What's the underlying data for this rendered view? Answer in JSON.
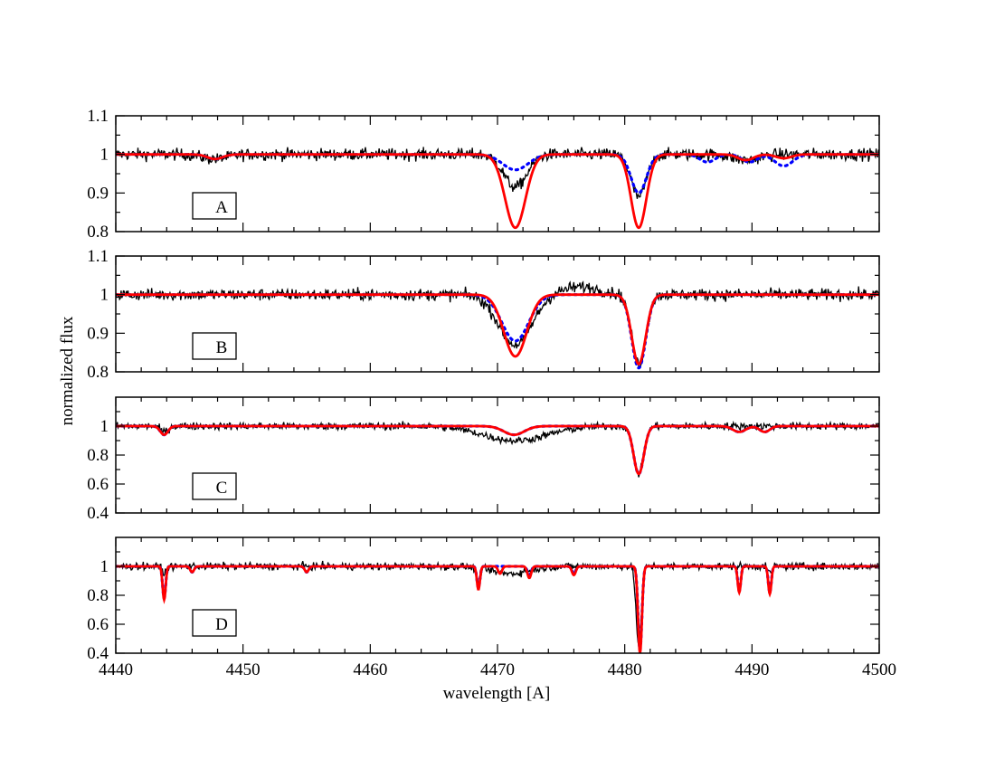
{
  "chart_data": {
    "type": "line",
    "xlabel": "wavelength [A]",
    "ylabel": "normalized flux",
    "xlim": [
      4440,
      4500
    ],
    "xticks": [
      "4440",
      "4450",
      "4460",
      "4470",
      "4480",
      "4490",
      "4500"
    ],
    "colors": {
      "observed": "#000000",
      "model_solid": "#ff0000",
      "model_dotted": "#0000ff"
    },
    "line_styles": {
      "observed": "solid thin",
      "model_solid": "solid thick",
      "model_dotted": "dotted"
    },
    "panels": [
      {
        "label": "A",
        "ylim": [
          0.8,
          1.1
        ],
        "yticks": [
          "0.8",
          "0.9",
          "1",
          "1.1"
        ],
        "noise": 0.015,
        "series": [
          {
            "key": "observed",
            "lines": [
              [
                4471.4,
                0.085,
                0.9
              ],
              [
                4481.1,
                0.11,
                0.6
              ],
              [
                4447.8,
                0.012,
                1.0
              ],
              [
                4489.5,
                0.015,
                1.0
              ]
            ]
          },
          {
            "key": "model_dotted",
            "lines": [
              [
                4471.4,
                0.04,
                1.0
              ],
              [
                4481.1,
                0.1,
                0.6
              ],
              [
                4447.8,
                0.012,
                0.6
              ],
              [
                4486.5,
                0.02,
                0.6
              ],
              [
                4489.8,
                0.02,
                0.6
              ],
              [
                4492.5,
                0.03,
                0.7
              ]
            ]
          },
          {
            "key": "model_solid",
            "lines": [
              [
                4471.4,
                0.19,
                0.8
              ],
              [
                4481.1,
                0.19,
                0.6
              ],
              [
                4447.8,
                0.012,
                0.6
              ],
              [
                4489.5,
                0.015,
                0.6
              ],
              [
                4492.5,
                0.01,
                0.6
              ]
            ]
          }
        ]
      },
      {
        "label": "B",
        "ylim": [
          0.8,
          1.1
        ],
        "yticks": [
          "0.8",
          "0.9",
          "1",
          "1.1"
        ],
        "noise": 0.015,
        "series": [
          {
            "key": "observed",
            "lines": [
              [
                4471.4,
                0.13,
                1.3
              ],
              [
                4481.1,
                0.18,
                0.55
              ],
              [
                4476.5,
                -0.02,
                1.5
              ]
            ]
          },
          {
            "key": "model_dotted",
            "lines": [
              [
                4471.4,
                0.12,
                1.05
              ],
              [
                4481.1,
                0.19,
                0.55
              ]
            ]
          },
          {
            "key": "model_solid",
            "lines": [
              [
                4471.4,
                0.16,
                0.9
              ],
              [
                4481.1,
                0.18,
                0.55
              ]
            ]
          }
        ]
      },
      {
        "label": "C",
        "ylim": [
          0.4,
          1.2
        ],
        "yticks": [
          "0.4",
          "0.6",
          "0.8",
          "1"
        ],
        "noise": 0.025,
        "series": [
          {
            "key": "observed",
            "lines": [
              [
                4471.4,
                0.1,
                2.5
              ],
              [
                4481.1,
                0.33,
                0.4
              ],
              [
                4443.8,
                0.04,
                0.3
              ]
            ]
          },
          {
            "key": "model_dotted",
            "lines": [
              [
                4481.1,
                0.33,
                0.4
              ],
              [
                4471.3,
                0.06,
                0.8
              ],
              [
                4443.8,
                0.06,
                0.3
              ],
              [
                4489.0,
                0.04,
                0.5
              ],
              [
                4491.0,
                0.04,
                0.4
              ]
            ]
          },
          {
            "key": "model_solid",
            "lines": [
              [
                4481.1,
                0.33,
                0.4
              ],
              [
                4471.3,
                0.06,
                0.8
              ],
              [
                4443.8,
                0.06,
                0.3
              ],
              [
                4489.0,
                0.04,
                0.5
              ],
              [
                4491.0,
                0.04,
                0.4
              ]
            ]
          }
        ]
      },
      {
        "label": "D",
        "ylim": [
          0.4,
          1.2
        ],
        "yticks": [
          "0.4",
          "0.6",
          "0.8",
          "1"
        ],
        "noise": 0.025,
        "series": [
          {
            "key": "observed",
            "lines": [
              [
                4481.1,
                0.56,
                0.2
              ],
              [
                4468.5,
                0.12,
                0.15
              ],
              [
                4443.8,
                0.05,
                0.15
              ],
              [
                4491.4,
                0.05,
                0.15
              ],
              [
                4471.0,
                0.05,
                1.5
              ]
            ]
          },
          {
            "key": "model_dotted",
            "lines": [
              [
                4481.2,
                0.58,
                0.15
              ],
              [
                4468.5,
                0.15,
                0.12
              ],
              [
                4443.8,
                0.22,
                0.12
              ],
              [
                4489.0,
                0.17,
                0.12
              ],
              [
                4491.4,
                0.18,
                0.12
              ],
              [
                4476.0,
                0.05,
                0.15
              ],
              [
                4472.5,
                0.06,
                0.15
              ],
              [
                4446.0,
                0.04,
                0.15
              ],
              [
                4455.0,
                0.04,
                0.15
              ]
            ]
          },
          {
            "key": "model_solid",
            "lines": [
              [
                4481.2,
                0.6,
                0.15
              ],
              [
                4468.5,
                0.16,
                0.12
              ],
              [
                4443.8,
                0.23,
                0.12
              ],
              [
                4489.0,
                0.18,
                0.12
              ],
              [
                4491.4,
                0.19,
                0.12
              ],
              [
                4476.0,
                0.06,
                0.15
              ],
              [
                4472.5,
                0.08,
                0.15
              ],
              [
                4446.0,
                0.04,
                0.15
              ],
              [
                4455.0,
                0.04,
                0.15
              ],
              [
                4470.2,
                0.05,
                0.15
              ]
            ]
          }
        ]
      }
    ]
  }
}
